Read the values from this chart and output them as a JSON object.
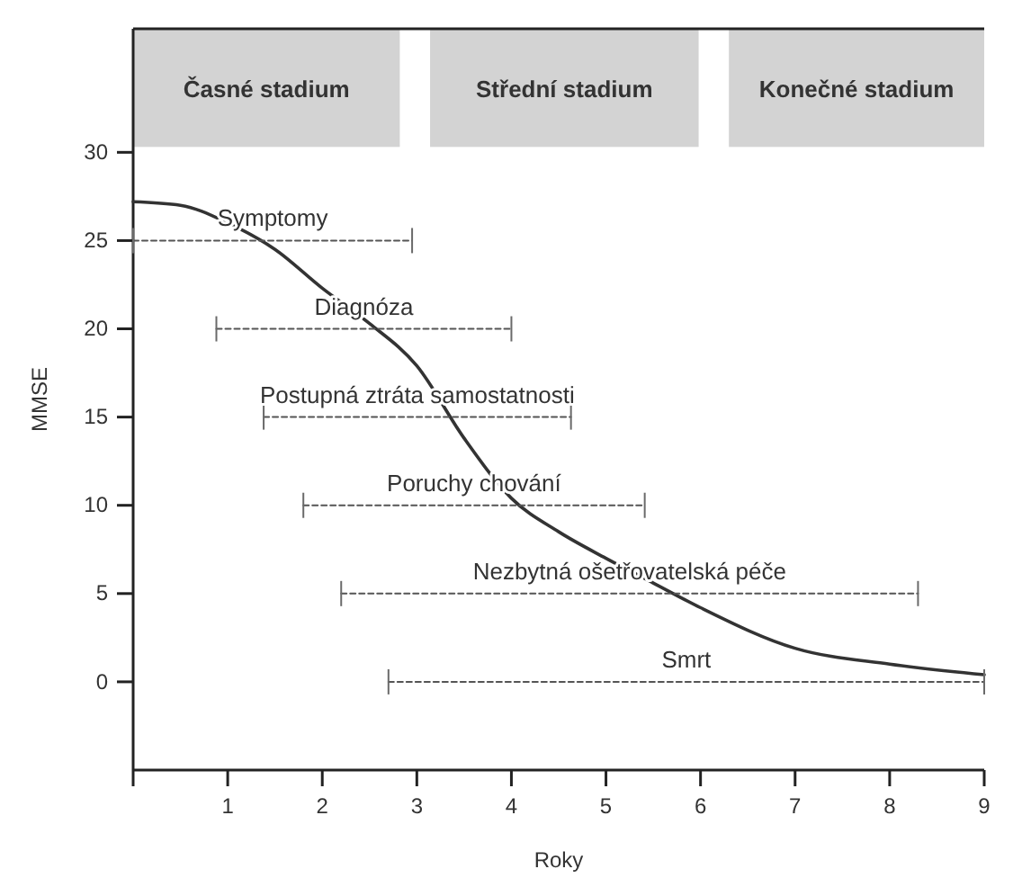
{
  "chart_data": {
    "type": "line",
    "xlabel": "Roky",
    "ylabel": "MMSE",
    "xlim": [
      0,
      9
    ],
    "ylim": [
      -5,
      37
    ],
    "xticks": [
      {
        "value": 0,
        "label": null
      },
      1,
      2,
      3,
      4,
      5,
      6,
      7,
      8,
      9
    ],
    "yticks": [
      0,
      5,
      10,
      15,
      20,
      25,
      30
    ],
    "grid": false,
    "marker": "none",
    "bands": [
      {
        "axis": "x",
        "from": 0,
        "to": 2.82,
        "label": "Časné stadium",
        "color": "#d3d3d3"
      },
      {
        "axis": "x",
        "from": 3.14,
        "to": 5.98,
        "label": "Střední stadium",
        "color": "#d3d3d3"
      },
      {
        "axis": "x",
        "from": 6.3,
        "to": 9,
        "label": "Konečné stadium",
        "color": "#d3d3d3"
      }
    ],
    "series": [
      {
        "color": "#333333",
        "line_style": "solid",
        "x": [
          0,
          0.5,
          1,
          1.5,
          2,
          2.5,
          3,
          3.5,
          4,
          4.5,
          5,
          5.5,
          6,
          7,
          8,
          9
        ],
        "values": [
          27.2,
          27,
          26,
          24.5,
          22.3,
          20.3,
          17.9,
          13.8,
          10.4,
          8.5,
          7,
          5.6,
          4.2,
          1.9,
          1,
          0.4
        ]
      },
      {
        "name": "Symptomy",
        "color": "#555555",
        "line_style": "dashed",
        "x": [
          0,
          2.95
        ],
        "values": [
          25,
          25
        ]
      },
      {
        "name": "Diagnóza",
        "color": "#555555",
        "line_style": "dashed",
        "x": [
          0.88,
          4
        ],
        "values": [
          20,
          20
        ]
      },
      {
        "name": "Postupná ztráta samostatnosti",
        "color": "#555555",
        "line_style": "dashed",
        "x": [
          1.38,
          4.63
        ],
        "values": [
          15,
          15
        ]
      },
      {
        "name": "Poruchy chování",
        "color": "#555555",
        "line_style": "dashed",
        "x": [
          1.8,
          5.41
        ],
        "values": [
          10,
          10
        ]
      },
      {
        "name": "Nezbytná ošetřovatelská péče",
        "color": "#555555",
        "line_style": "dashed",
        "x": [
          2.2,
          8.3
        ],
        "values": [
          5,
          5
        ]
      },
      {
        "name": "Smrt",
        "color": "#555555",
        "line_style": "dashed",
        "x": [
          2.7,
          9
        ],
        "values": [
          0,
          0
        ]
      }
    ]
  }
}
